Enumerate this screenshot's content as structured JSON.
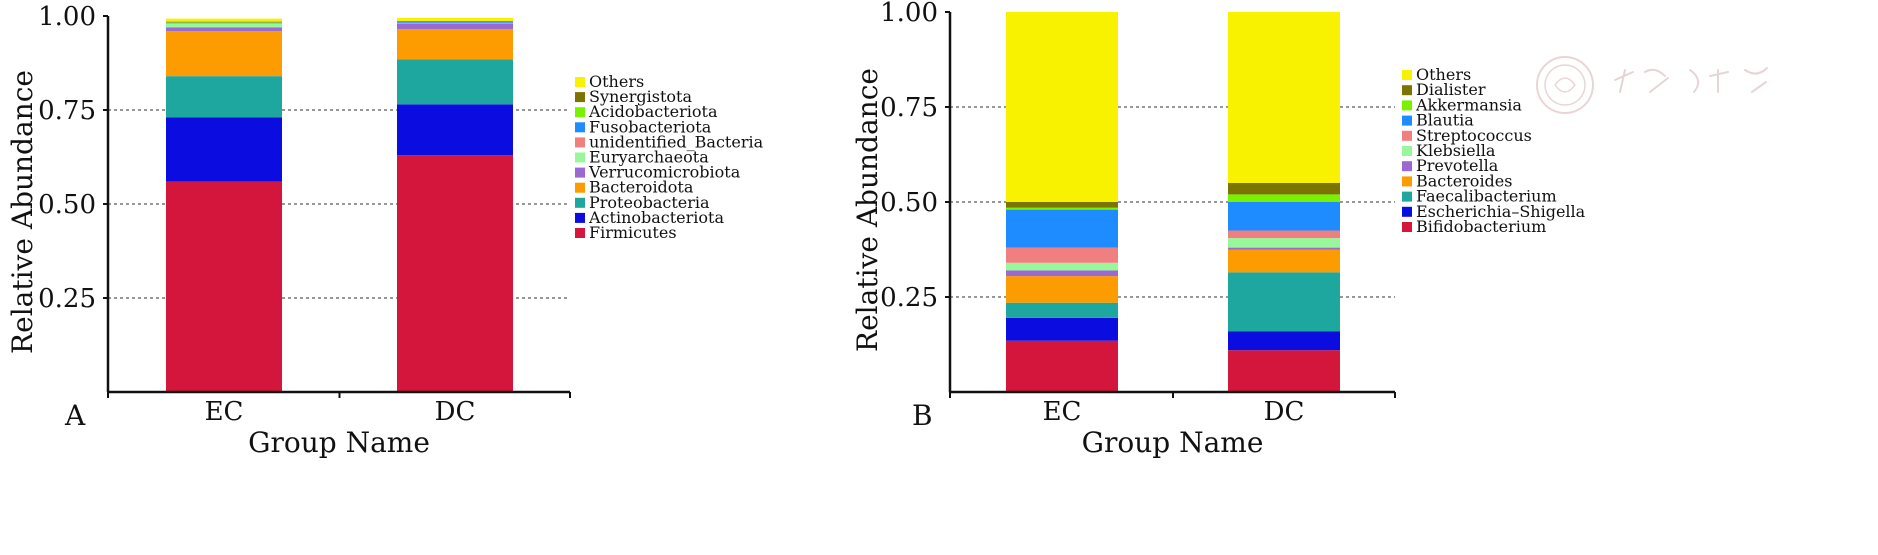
{
  "chart_data": [
    {
      "panel": "A",
      "type": "bar",
      "stacked": true,
      "xlabel": "Group Name",
      "ylabel": "Relative Abundance",
      "ylim": [
        0,
        1
      ],
      "yticks": [
        "0.25",
        "0.50",
        "0.75",
        "1.00"
      ],
      "grid": true,
      "legend_position": "right",
      "categories": [
        "EC",
        "DC"
      ],
      "series": [
        {
          "name": "Firmicutes",
          "color": "#d4163c",
          "values": [
            0.56,
            0.63
          ]
        },
        {
          "name": "Actinobacteriota",
          "color": "#0b0de0",
          "values": [
            0.17,
            0.135
          ]
        },
        {
          "name": "Proteobacteria",
          "color": "#1ea79e",
          "values": [
            0.11,
            0.12
          ]
        },
        {
          "name": "Bacteroidota",
          "color": "#fd9c00",
          "values": [
            0.12,
            0.08
          ]
        },
        {
          "name": "Verrucomicrobiota",
          "color": "#9a69d2",
          "values": [
            0.01,
            0.015
          ]
        },
        {
          "name": "Euryarchaeota",
          "color": "#98f79a",
          "values": [
            0.01,
            0.001
          ]
        },
        {
          "name": "unidentified_Bacteria",
          "color": "#f08080",
          "values": [
            0.001,
            0.001
          ]
        },
        {
          "name": "Fusobacteriota",
          "color": "#1e8cff",
          "values": [
            0.001,
            0.002
          ]
        },
        {
          "name": "Acidobacteriota",
          "color": "#79f200",
          "values": [
            0.001,
            0.001
          ]
        },
        {
          "name": "Synergistota",
          "color": "#7c7400",
          "values": [
            0.002,
            0.002
          ]
        },
        {
          "name": "Others",
          "color": "#f8f200",
          "values": [
            0.008,
            0.008
          ]
        }
      ]
    },
    {
      "panel": "B",
      "type": "bar",
      "stacked": true,
      "xlabel": "Group Name",
      "ylabel": "Relative Abundance",
      "ylim": [
        0,
        1
      ],
      "yticks": [
        "0.25",
        "0.50",
        "0.75",
        "1.00"
      ],
      "grid": true,
      "legend_position": "right",
      "categories": [
        "EC",
        "DC"
      ],
      "series": [
        {
          "name": "Bifidobacterium",
          "color": "#d4163c",
          "values": [
            0.135,
            0.11
          ]
        },
        {
          "name": "Escherichia–Shigella",
          "color": "#0b0de0",
          "values": [
            0.06,
            0.05
          ]
        },
        {
          "name": "Faecalibacterium",
          "color": "#1ea79e",
          "values": [
            0.04,
            0.155
          ]
        },
        {
          "name": "Bacteroides",
          "color": "#fd9c00",
          "values": [
            0.07,
            0.06
          ]
        },
        {
          "name": "Prevotella",
          "color": "#9a69d2",
          "values": [
            0.015,
            0.005
          ]
        },
        {
          "name": "Klebsiella",
          "color": "#98f79a",
          "values": [
            0.02,
            0.025
          ]
        },
        {
          "name": "Streptococcus",
          "color": "#f08080",
          "values": [
            0.04,
            0.02
          ]
        },
        {
          "name": "Blautia",
          "color": "#1e8cff",
          "values": [
            0.1,
            0.075
          ]
        },
        {
          "name": "Akkermansia",
          "color": "#79f200",
          "values": [
            0.005,
            0.02
          ]
        },
        {
          "name": "Dialister",
          "color": "#7c7400",
          "values": [
            0.015,
            0.03
          ]
        },
        {
          "name": "Others",
          "color": "#f8f200",
          "values": [
            0.5,
            0.45
          ]
        }
      ]
    }
  ]
}
